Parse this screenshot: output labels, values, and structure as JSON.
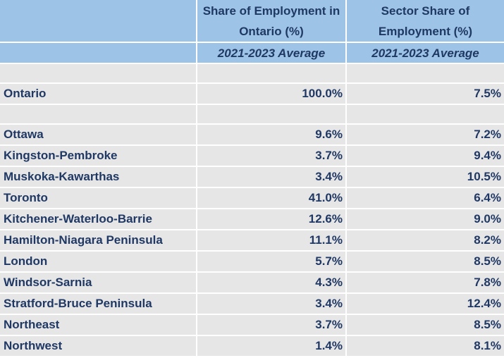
{
  "header": {
    "col2_title": "Share of Employment in Ontario (%)",
    "col3_title": "Sector Share of Employment (%)",
    "col2_sub": "2021-2023 Average",
    "col3_sub": "2021-2023 Average"
  },
  "ontario": {
    "region": "Ontario",
    "share": "100.0%",
    "sector": "7.5%"
  },
  "rows": [
    {
      "region": "Ottawa",
      "share": "9.6%",
      "sector": "7.2%"
    },
    {
      "region": "Kingston-Pembroke",
      "share": "3.7%",
      "sector": "9.4%"
    },
    {
      "region": "Muskoka-Kawarthas",
      "share": "3.4%",
      "sector": "10.5%"
    },
    {
      "region": "Toronto",
      "share": "41.0%",
      "sector": "6.4%"
    },
    {
      "region": "Kitchener-Waterloo-Barrie",
      "share": "12.6%",
      "sector": "9.0%"
    },
    {
      "region": "Hamilton-Niagara Peninsula",
      "share": "11.1%",
      "sector": "8.2%"
    },
    {
      "region": "London",
      "share": "5.7%",
      "sector": "8.5%"
    },
    {
      "region": "Windsor-Sarnia",
      "share": "4.3%",
      "sector": "7.8%"
    },
    {
      "region": "Stratford-Bruce Peninsula",
      "share": "3.4%",
      "sector": "12.4%"
    },
    {
      "region": "Northeast",
      "share": "3.7%",
      "sector": "8.5%"
    },
    {
      "region": "Northwest",
      "share": "1.4%",
      "sector": "8.1%"
    }
  ]
}
